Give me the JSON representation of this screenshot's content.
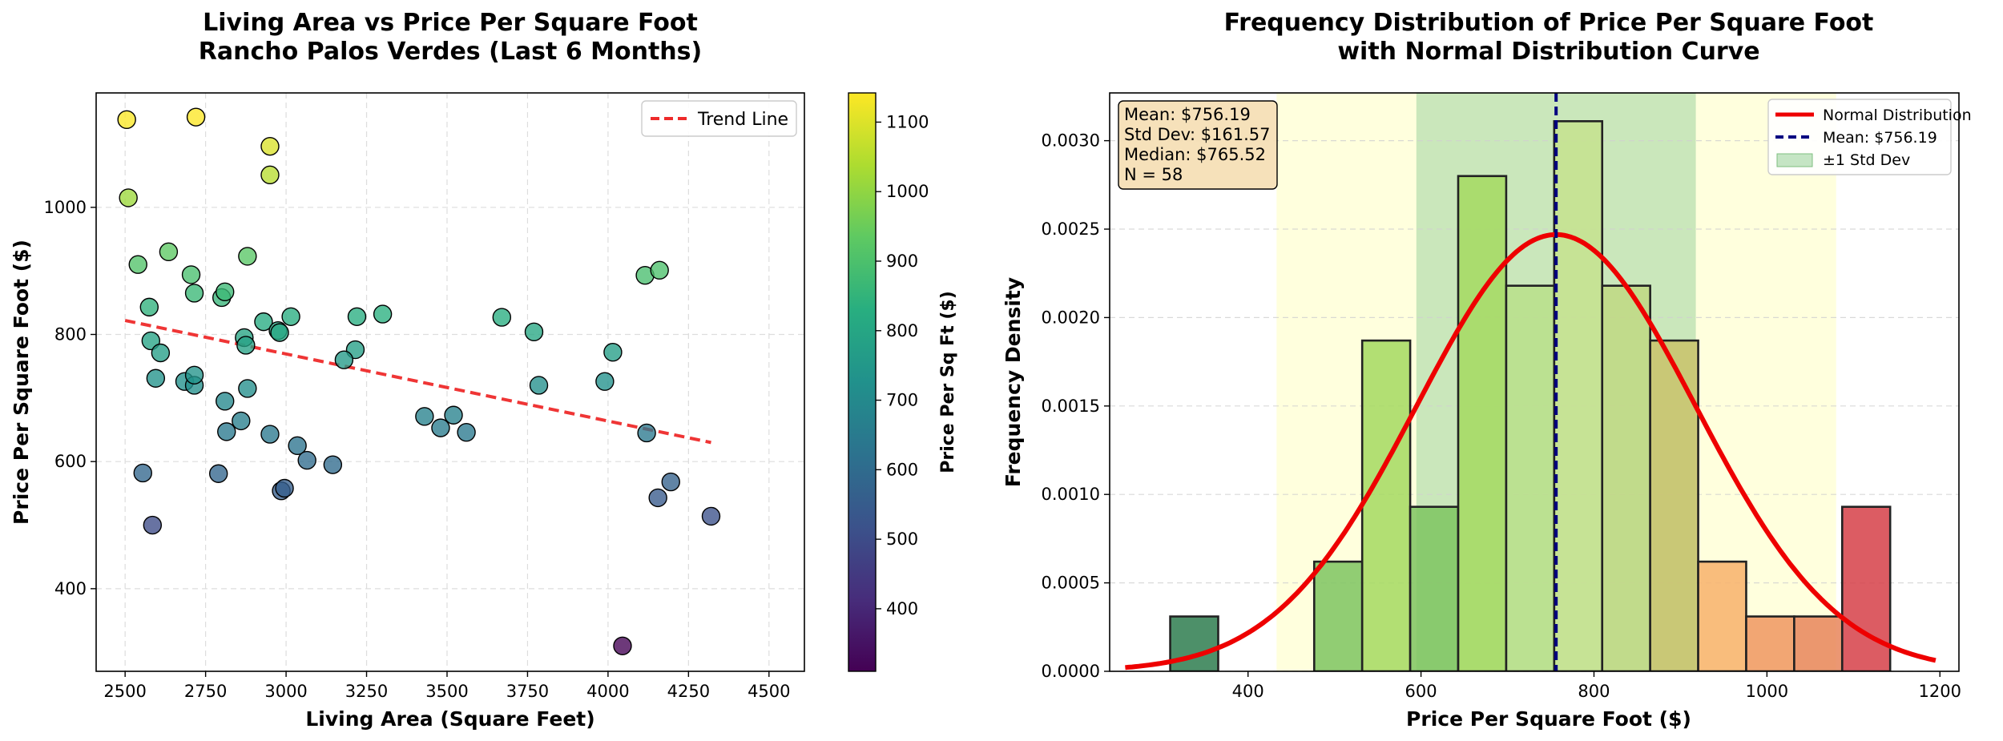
{
  "chart_data": [
    {
      "type": "scatter",
      "title_line1": "Living Area vs Price Per Square Foot",
      "title_line2": "Rancho Palos Verdes (Last 6 Months)",
      "xlabel": "Living Area (Square Feet)",
      "ylabel": "Price Per Square Foot ($)",
      "xlim": [
        2410,
        4610
      ],
      "ylim": [
        270,
        1180
      ],
      "xticks": [
        2500,
        2750,
        3000,
        3250,
        3500,
        3750,
        4000,
        4250,
        4500
      ],
      "yticks": [
        400,
        600,
        800,
        1000
      ],
      "grid": true,
      "legend_position": "top-right",
      "legend_entries": [
        "Trend Line"
      ],
      "trend_line": {
        "x": [
          2500,
          4320
        ],
        "y": [
          822,
          630
        ],
        "color": "#ee2a2a"
      },
      "colorbar": {
        "label": "Price Per Sq Ft ($)",
        "range": [
          310,
          1142
        ],
        "ticks": [
          400,
          500,
          600,
          700,
          800,
          900,
          1000,
          1100
        ],
        "colormap": "viridis"
      },
      "points": [
        [
          2505,
          1138
        ],
        [
          2720,
          1142
        ],
        [
          2950,
          1096
        ],
        [
          2950,
          1051
        ],
        [
          2510,
          1015
        ],
        [
          2540,
          910
        ],
        [
          2635,
          930
        ],
        [
          2880,
          923
        ],
        [
          2705,
          894
        ],
        [
          2715,
          865
        ],
        [
          2800,
          858
        ],
        [
          2810,
          867
        ],
        [
          2575,
          843
        ],
        [
          4115,
          893
        ],
        [
          4160,
          901
        ],
        [
          2930,
          820
        ],
        [
          2975,
          806
        ],
        [
          2980,
          803
        ],
        [
          3015,
          828
        ],
        [
          3220,
          828
        ],
        [
          3300,
          832
        ],
        [
          3670,
          827
        ],
        [
          3770,
          804
        ],
        [
          2870,
          795
        ],
        [
          2875,
          783
        ],
        [
          3215,
          776
        ],
        [
          3180,
          760
        ],
        [
          4015,
          772
        ],
        [
          2580,
          790
        ],
        [
          2610,
          771
        ],
        [
          2595,
          731
        ],
        [
          2685,
          726
        ],
        [
          2715,
          720
        ],
        [
          2715,
          736
        ],
        [
          2880,
          715
        ],
        [
          2810,
          695
        ],
        [
          3785,
          720
        ],
        [
          3990,
          726
        ],
        [
          2860,
          664
        ],
        [
          2815,
          647
        ],
        [
          2950,
          643
        ],
        [
          3035,
          625
        ],
        [
          3430,
          671
        ],
        [
          3520,
          673
        ],
        [
          3480,
          653
        ],
        [
          3560,
          646
        ],
        [
          4120,
          645
        ],
        [
          3065,
          602
        ],
        [
          3145,
          595
        ],
        [
          2555,
          582
        ],
        [
          2790,
          581
        ],
        [
          2985,
          554
        ],
        [
          2995,
          558
        ],
        [
          4195,
          568
        ],
        [
          4155,
          543
        ],
        [
          4320,
          514
        ],
        [
          2585,
          500
        ],
        [
          4045,
          310
        ]
      ]
    },
    {
      "type": "bar",
      "title_line1": "Frequency Distribution of Price Per Square Foot",
      "title_line2": "with Normal Distribution Curve",
      "xlabel": "Price Per Square Foot ($)",
      "ylabel": "Frequency Density",
      "xlim": [
        240,
        1222
      ],
      "ylim": [
        0,
        0.00327
      ],
      "xticks": [
        400,
        600,
        800,
        1000,
        1200
      ],
      "yticks": [
        0.0,
        0.0005,
        0.001,
        0.0015,
        0.002,
        0.0025,
        0.003
      ],
      "ytick_labels": [
        "0.0000",
        "0.0005",
        "0.0010",
        "0.0015",
        "0.0020",
        "0.0025",
        "0.0030"
      ],
      "grid": true,
      "legend_position": "top-right",
      "legend_entries": [
        "Normal Distribution",
        "Mean: $756.19",
        "±1 Std Dev"
      ],
      "stats_box": [
        "Mean: $756.19",
        "Std Dev: $161.57",
        "Median: $765.52",
        "N = 58"
      ],
      "mean": 756.19,
      "std": 161.57,
      "n": 58,
      "bins": [
        {
          "x0": 310.0,
          "x1": 365.5,
          "density": 0.00031,
          "color": "#2e7d4f"
        },
        {
          "x0": 365.5,
          "x1": 421.0,
          "density": 0.0,
          "color": "#2e7d4f"
        },
        {
          "x0": 421.0,
          "x1": 476.5,
          "density": 0.0,
          "color": "#2e7d4f"
        },
        {
          "x0": 476.5,
          "x1": 532.0,
          "density": 0.00062,
          "color": "#7ec460"
        },
        {
          "x0": 532.0,
          "x1": 587.5,
          "density": 0.00187,
          "color": "#a4d960"
        },
        {
          "x0": 587.5,
          "x1": 643.0,
          "density": 0.00093,
          "color": "#7ec460"
        },
        {
          "x0": 643.0,
          "x1": 698.5,
          "density": 0.0028,
          "color": "#a4d960"
        },
        {
          "x0": 698.5,
          "x1": 754.0,
          "density": 0.00218,
          "color": "#b9df8a"
        },
        {
          "x0": 754.0,
          "x1": 809.5,
          "density": 0.00311,
          "color": "#c6e28e"
        },
        {
          "x0": 809.5,
          "x1": 865.0,
          "density": 0.00218,
          "color": "#c0d882"
        },
        {
          "x0": 865.0,
          "x1": 920.5,
          "density": 0.00187,
          "color": "#c9c26a"
        },
        {
          "x0": 920.5,
          "x1": 976.0,
          "density": 0.00062,
          "color": "#f8b16b"
        },
        {
          "x0": 976.0,
          "x1": 1031.5,
          "density": 0.00031,
          "color": "#f09660"
        },
        {
          "x0": 1031.5,
          "x1": 1087.0,
          "density": 0.00031,
          "color": "#e8855a"
        },
        {
          "x0": 1087.0,
          "x1": 1142.5,
          "density": 0.00093,
          "color": "#d64048"
        }
      ],
      "bands": {
        "two_std": [
          433,
          1080
        ],
        "one_std": [
          594.62,
          917.76
        ],
        "two_std_color": "#ffff9e",
        "one_std_color": "#9fd39f"
      },
      "normal_curve_range": [
        258,
        1195
      ],
      "curve_color": "#ee0000",
      "mean_line_color": "#000080"
    }
  ]
}
